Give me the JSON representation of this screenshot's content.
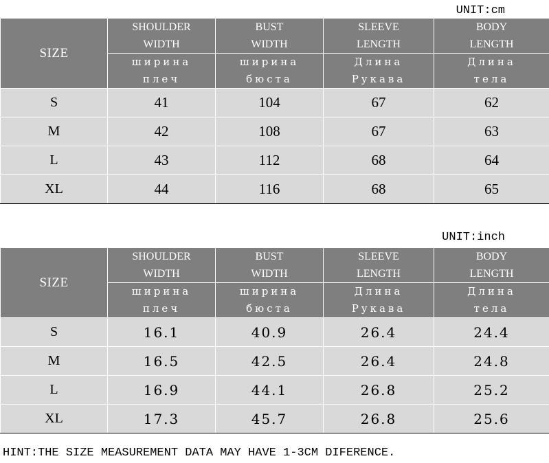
{
  "tables": [
    {
      "unit_label": "UNIT:cm",
      "size_header": "SIZE",
      "columns": [
        {
          "en": "SHOULDER\nWIDTH",
          "ru": "ширина\nплеч"
        },
        {
          "en": "BUST\nWIDTH",
          "ru": "ширина\nбюста"
        },
        {
          "en": "SLEEVE\nLENGTH",
          "ru": "Длина\nРукава"
        },
        {
          "en": "BODY\nLENGTH",
          "ru": "Длина\nтела"
        }
      ],
      "rows": [
        {
          "size": "S",
          "values": [
            "41",
            "104",
            "67",
            "62"
          ]
        },
        {
          "size": "M",
          "values": [
            "42",
            "108",
            "67",
            "63"
          ]
        },
        {
          "size": "L",
          "values": [
            "43",
            "112",
            "68",
            "64"
          ]
        },
        {
          "size": "XL",
          "values": [
            "44",
            "116",
            "68",
            "65"
          ]
        }
      ]
    },
    {
      "unit_label": "UNIT:inch",
      "size_header": "SIZE",
      "columns": [
        {
          "en": "SHOULDER\nWIDTH",
          "ru": "ширина\nплеч"
        },
        {
          "en": "BUST\nWIDTH",
          "ru": "ширина\nбюста"
        },
        {
          "en": "SLEEVE\nLENGTH",
          "ru": "Длина\nРукава"
        },
        {
          "en": "BODY\nLENGTH",
          "ru": "Длина\nтела"
        }
      ],
      "rows": [
        {
          "size": "S",
          "values": [
            "16.1",
            "40.9",
            "26.4",
            "24.4"
          ]
        },
        {
          "size": "M",
          "values": [
            "16.5",
            "42.5",
            "26.4",
            "24.8"
          ]
        },
        {
          "size": "L",
          "values": [
            "16.9",
            "44.1",
            "26.8",
            "25.2"
          ]
        },
        {
          "size": "XL",
          "values": [
            "17.3",
            "45.7",
            "26.8",
            "25.6"
          ]
        }
      ]
    }
  ],
  "hint": "HINT:THE SIZE MEASUREMENT DATA MAY HAVE 1-3CM DIFERENCE."
}
